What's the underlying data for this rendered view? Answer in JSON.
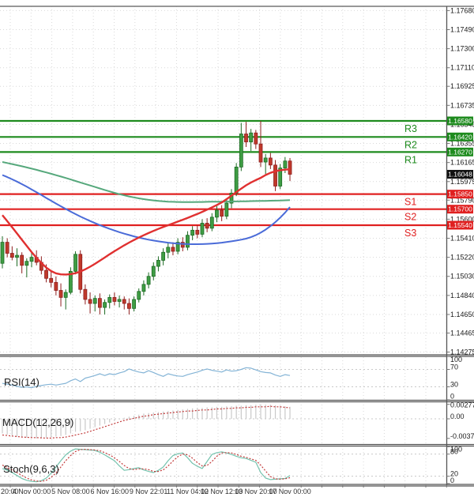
{
  "colors": {
    "up_candle": "#3f9d44",
    "up_candle_border": "#1d6b24",
    "down_candle": "#c0392b",
    "down_candle_border": "#8f1f1f",
    "resistance": "#1e8b1e",
    "support": "#e02020",
    "ma_green": "#56a87c",
    "ma_blue": "#4a6bd8",
    "ma_red": "#e03030",
    "rsi": "#84b4d6",
    "macd_hist": "#c9c9c9",
    "macd_signal": "#c23b3b",
    "stoch_k": "#74c3ae",
    "stoch_d": "#c23b3b",
    "badge_current": "#111111",
    "grid": "#d9d9d9",
    "axis_text": "#1a1a1a",
    "separator": "#555555",
    "time_text": "#333333"
  },
  "chart_data": {
    "type": "candlestick",
    "main": {
      "ohlc": [
        [
          1.1516,
          1.1543,
          1.1511,
          1.1537
        ],
        [
          1.1537,
          1.1541,
          1.1522,
          1.1526
        ],
        [
          1.1526,
          1.1533,
          1.1519,
          1.1522
        ],
        [
          1.1522,
          1.1531,
          1.1513,
          1.1524
        ],
        [
          1.1524,
          1.1527,
          1.1506,
          1.1514
        ],
        [
          1.1514,
          1.1521,
          1.1502,
          1.1518
        ],
        [
          1.1518,
          1.1526,
          1.1512,
          1.1522
        ],
        [
          1.1522,
          1.1529,
          1.1514,
          1.1517
        ],
        [
          1.1517,
          1.1523,
          1.1505,
          1.1509
        ],
        [
          1.1509,
          1.1515,
          1.1497,
          1.1501
        ],
        [
          1.1501,
          1.1508,
          1.1492,
          1.1497
        ],
        [
          1.1497,
          1.1503,
          1.1484,
          1.1489
        ],
        [
          1.1489,
          1.1496,
          1.1473,
          1.1482
        ],
        [
          1.1482,
          1.149,
          1.147,
          1.1487
        ],
        [
          1.1487,
          1.1512,
          1.1485,
          1.1508
        ],
        [
          1.1508,
          1.1528,
          1.1505,
          1.1525
        ],
        [
          1.1525,
          1.1529,
          1.1486,
          1.149
        ],
        [
          1.149,
          1.1495,
          1.1475,
          1.148
        ],
        [
          1.148,
          1.1487,
          1.1466,
          1.1476
        ],
        [
          1.1476,
          1.1484,
          1.1468,
          1.1481
        ],
        [
          1.1481,
          1.1486,
          1.1465,
          1.1472
        ],
        [
          1.1472,
          1.148,
          1.1465,
          1.1477
        ],
        [
          1.1477,
          1.1485,
          1.1471,
          1.1482
        ],
        [
          1.1482,
          1.1487,
          1.1474,
          1.1478
        ],
        [
          1.1478,
          1.1484,
          1.1472,
          1.148
        ],
        [
          1.148,
          1.1483,
          1.147,
          1.1476
        ],
        [
          1.1476,
          1.1481,
          1.1465,
          1.1471
        ],
        [
          1.1471,
          1.1483,
          1.1468,
          1.148
        ],
        [
          1.148,
          1.1491,
          1.1477,
          1.1488
        ],
        [
          1.1488,
          1.1499,
          1.1484,
          1.1495
        ],
        [
          1.1495,
          1.1507,
          1.1491,
          1.1503
        ],
        [
          1.1503,
          1.1517,
          1.1499,
          1.1513
        ],
        [
          1.1513,
          1.1523,
          1.1508,
          1.1519
        ],
        [
          1.1519,
          1.1531,
          1.1514,
          1.1527
        ],
        [
          1.1527,
          1.1536,
          1.1521,
          1.1532
        ],
        [
          1.1532,
          1.1537,
          1.1524,
          1.1528
        ],
        [
          1.1528,
          1.1541,
          1.1525,
          1.1537
        ],
        [
          1.1537,
          1.1542,
          1.1528,
          1.1532
        ],
        [
          1.1532,
          1.1548,
          1.1529,
          1.1544
        ],
        [
          1.1544,
          1.1553,
          1.1539,
          1.1549
        ],
        [
          1.1549,
          1.1554,
          1.1541,
          1.1545
        ],
        [
          1.1545,
          1.156,
          1.1542,
          1.1556
        ],
        [
          1.1556,
          1.1561,
          1.1547,
          1.1551
        ],
        [
          1.1551,
          1.1566,
          1.1548,
          1.1562
        ],
        [
          1.1562,
          1.1573,
          1.1557,
          1.1569
        ],
        [
          1.1569,
          1.1574,
          1.1558,
          1.1563
        ],
        [
          1.1563,
          1.158,
          1.156,
          1.1576
        ],
        [
          1.1576,
          1.159,
          1.1571,
          1.1586
        ],
        [
          1.1586,
          1.1616,
          1.1583,
          1.1612
        ],
        [
          1.1612,
          1.1656,
          1.1608,
          1.1645
        ],
        [
          1.1645,
          1.1657,
          1.1632,
          1.1637
        ],
        [
          1.1637,
          1.165,
          1.1628,
          1.1646
        ],
        [
          1.1646,
          1.1649,
          1.163,
          1.1635
        ],
        [
          1.1635,
          1.1658,
          1.1612,
          1.1617
        ],
        [
          1.1617,
          1.1625,
          1.1605,
          1.1621
        ],
        [
          1.1621,
          1.1626,
          1.161,
          1.1614
        ],
        [
          1.1614,
          1.1619,
          1.1588,
          1.1593
        ],
        [
          1.1593,
          1.1615,
          1.159,
          1.1611
        ],
        [
          1.1611,
          1.1622,
          1.1606,
          1.1618
        ],
        [
          1.1618,
          1.1621,
          1.1598,
          1.16048
        ]
      ],
      "ma_green": [
        1.1617,
        1.1616,
        1.1615,
        1.16139,
        1.16128,
        1.16116,
        1.16104,
        1.16092,
        1.16079,
        1.16066,
        1.16053,
        1.16039,
        1.16025,
        1.16011,
        1.15996,
        1.15981,
        1.15966,
        1.15951,
        1.15936,
        1.15921,
        1.15906,
        1.15891,
        1.15877,
        1.15863,
        1.1585,
        1.15838,
        1.15827,
        1.15817,
        1.15808,
        1.158,
        1.15793,
        1.15787,
        1.15782,
        1.15778,
        1.15775,
        1.15773,
        1.15772,
        1.15771,
        1.15771,
        1.15771,
        1.15772,
        1.15772,
        1.15773,
        1.15774,
        1.15774,
        1.15775,
        1.15775,
        1.15776,
        1.15777,
        1.15778,
        1.15779,
        1.1578,
        1.15781,
        1.15782,
        1.15783,
        1.15784,
        1.15785,
        1.15786,
        1.15788,
        1.1579
      ],
      "ma_blue": [
        1.1604,
        1.1602,
        1.15998,
        1.15975,
        1.1595,
        1.15924,
        1.15897,
        1.15869,
        1.15841,
        1.15812,
        1.15784,
        1.15756,
        1.15729,
        1.15702,
        1.15676,
        1.15651,
        1.15627,
        1.15604,
        1.15582,
        1.15561,
        1.15541,
        1.15522,
        1.15504,
        1.15487,
        1.15471,
        1.15456,
        1.15442,
        1.15429,
        1.15417,
        1.15406,
        1.15396,
        1.15387,
        1.15379,
        1.15372,
        1.15366,
        1.15361,
        1.15357,
        1.15354,
        1.15352,
        1.15351,
        1.15351,
        1.15352,
        1.15354,
        1.15357,
        1.15361,
        1.15366,
        1.15372,
        1.15379,
        1.15387,
        1.15396,
        1.15406,
        1.15421,
        1.15441,
        1.15466,
        1.15496,
        1.15531,
        1.15571,
        1.15616,
        1.15666,
        1.15721
      ],
      "ma_red": [
        1.1564,
        1.1558,
        1.1552,
        1.15458,
        1.15395,
        1.15333,
        1.15272,
        1.15215,
        1.15163,
        1.15118,
        1.15083,
        1.1506,
        1.1505,
        1.15048,
        1.15052,
        1.15062,
        1.15078,
        1.151,
        1.15126,
        1.15155,
        1.15186,
        1.15218,
        1.1525,
        1.15281,
        1.15311,
        1.1534,
        1.15367,
        1.15393,
        1.15417,
        1.1544,
        1.15462,
        1.15483,
        1.15503,
        1.15522,
        1.1554,
        1.15558,
        1.15576,
        1.15594,
        1.15613,
        1.15632,
        1.15652,
        1.15673,
        1.15695,
        1.15718,
        1.15742,
        1.15767,
        1.158,
        1.15835,
        1.1587,
        1.15905,
        1.15938,
        1.15966,
        1.1599,
        1.16012,
        1.1604,
        1.16062,
        1.16078,
        1.16088,
        1.16094,
        1.16098
      ],
      "levels": {
        "resistance": [
          {
            "name": "R3",
            "price": 1.1658,
            "label": "1.16580"
          },
          {
            "name": "R2",
            "price": 1.1642,
            "label": "1.16420"
          },
          {
            "name": "R1",
            "price": 1.1627,
            "label": "1.16270"
          }
        ],
        "support": [
          {
            "name": "S1",
            "price": 1.1585,
            "label": "1.15850"
          },
          {
            "name": "S2",
            "price": 1.157,
            "label": "1.15700"
          },
          {
            "name": "S3",
            "price": 1.1554,
            "label": "1.15540"
          }
        ]
      },
      "current_price": 1.16048,
      "current_price_label": "1.16048",
      "y_ticks": [
        "1.17680",
        "1.17490",
        "1.17300",
        "1.17110",
        "1.16925",
        "1.16735",
        "1.16545",
        "1.16355",
        "1.16165",
        "1.15975",
        "1.15790",
        "1.15600",
        "1.15410",
        "1.15220",
        "1.15030",
        "1.14840",
        "1.14650",
        "1.14465",
        "1.14275"
      ]
    },
    "rsi": {
      "label": "RSI(14)",
      "ticks": [
        "100",
        "70",
        "30",
        "0"
      ],
      "tick_values": [
        100,
        70,
        30,
        0
      ],
      "levels": [
        70,
        30
      ],
      "values": [
        38,
        36,
        34,
        31,
        29,
        30,
        28,
        31,
        33,
        35,
        36,
        34,
        36,
        38,
        44,
        48,
        42,
        50,
        53,
        56,
        60,
        56,
        60,
        58,
        62,
        65,
        71,
        67,
        64,
        62,
        67,
        63,
        58,
        54,
        60,
        57,
        55,
        54,
        58,
        61,
        64,
        68,
        71,
        68,
        66,
        64,
        69,
        66,
        67,
        70,
        74,
        73,
        69,
        65,
        63,
        62,
        57,
        54,
        58,
        56
      ]
    },
    "macd": {
      "label": "MACD(12,26,9)",
      "ticks": [
        "0.002772",
        "0.00",
        "-0.003753"
      ],
      "tick_values": [
        0.002772,
        0,
        -0.003753
      ],
      "histogram": [
        -0.0028,
        -0.003,
        -0.0032,
        -0.0034,
        -0.0035,
        -0.0036,
        -0.0037,
        -0.00375,
        -0.0037,
        -0.0036,
        -0.0035,
        -0.0034,
        -0.0033,
        -0.0031,
        -0.0028,
        -0.0025,
        -0.0024,
        -0.0022,
        -0.0019,
        -0.0016,
        -0.0013,
        -0.001,
        -0.0007,
        -0.0004,
        -0.0001,
        0.0002,
        0.0004,
        0.0006,
        0.0008,
        0.001,
        0.0011,
        0.0012,
        0.0013,
        0.0014,
        0.0015,
        0.0016,
        0.0017,
        0.0018,
        0.0019,
        0.002,
        0.0021,
        0.0021,
        0.0022,
        0.0022,
        0.0023,
        0.0023,
        0.0024,
        0.0024,
        0.0025,
        0.0025,
        0.0026,
        0.0026,
        0.0027,
        0.00277,
        0.00272,
        0.0027,
        0.0026,
        0.0025,
        0.0024,
        0.0023
      ],
      "signal": [
        -0.0031,
        -0.0032,
        -0.0033,
        -0.0034,
        -0.0035,
        -0.00355,
        -0.0036,
        -0.0036,
        -0.00365,
        -0.0037,
        -0.0037,
        -0.0036,
        -0.0036,
        -0.0035,
        -0.0033,
        -0.0031,
        -0.0029,
        -0.0027,
        -0.0024,
        -0.0021,
        -0.0018,
        -0.0015,
        -0.0012,
        -0.0009,
        -0.0006,
        -0.0003,
        -0.0001,
        0.0001,
        0.0003,
        0.0005,
        0.0006,
        0.0008,
        0.0009,
        0.001,
        0.0011,
        0.0012,
        0.0013,
        0.0014,
        0.0015,
        0.0015,
        0.0016,
        0.0017,
        0.0017,
        0.0018,
        0.0019,
        0.0019,
        0.002,
        0.002,
        0.0021,
        0.0021,
        0.0022,
        0.0022,
        0.0023,
        0.0023,
        0.0023,
        0.0024,
        0.0023,
        0.0023,
        0.0022,
        0.0021
      ]
    },
    "stoch": {
      "label": "Stoch(9,6,3)",
      "ticks": [
        "100",
        "80",
        "20",
        "0"
      ],
      "tick_values": [
        100,
        80,
        20,
        0
      ],
      "levels": [
        80,
        20
      ],
      "k": [
        41,
        36,
        30,
        22,
        14,
        9,
        6,
        5,
        8,
        15,
        28,
        45,
        62,
        78,
        88,
        94,
        93,
        92,
        91,
        90,
        85,
        78,
        70,
        62,
        48,
        36,
        38,
        41,
        43,
        37,
        33,
        30,
        36,
        45,
        62,
        76,
        81,
        83,
        70,
        55,
        47,
        41,
        60,
        79,
        84,
        86,
        83,
        79,
        74,
        70,
        68,
        63,
        58,
        30,
        15,
        11,
        12,
        13,
        14,
        22
      ],
      "d": [
        50,
        44,
        37,
        30,
        22,
        15,
        10,
        7,
        6,
        9,
        17,
        29,
        45,
        62,
        76,
        87,
        92,
        93,
        92,
        91,
        89,
        84,
        78,
        70,
        60,
        49,
        41,
        38,
        40,
        40,
        38,
        33,
        33,
        37,
        48,
        61,
        73,
        80,
        78,
        69,
        57,
        48,
        49,
        60,
        74,
        83,
        84,
        83,
        79,
        74,
        71,
        67,
        63,
        50,
        34,
        19,
        13,
        12,
        13,
        16
      ]
    },
    "time_axis": [
      {
        "label": "20:00",
        "i": 0
      },
      {
        "label": "4 Nov 00:00",
        "i": 6
      },
      {
        "label": "5 Nov 08:00",
        "i": 14
      },
      {
        "label": "6 Nov 16:00",
        "i": 22
      },
      {
        "label": "9 Nov 22:01",
        "i": 30
      },
      {
        "label": "11 Nov 04:00",
        "i": 38
      },
      {
        "label": "12 Nov 12:00",
        "i": 45
      },
      {
        "label": "13 Nov 20:00",
        "i": 52
      },
      {
        "label": "17 Nov 00:00",
        "i": 59
      }
    ]
  }
}
